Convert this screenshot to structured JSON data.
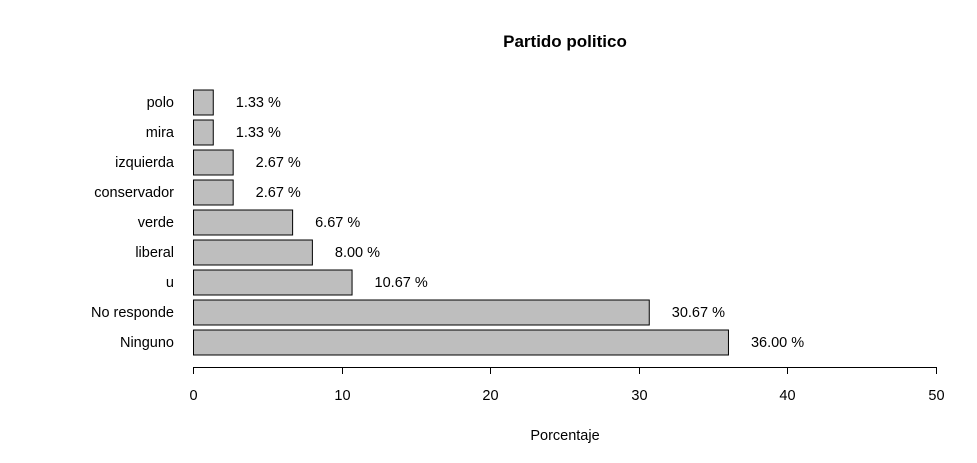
{
  "chart_data": {
    "type": "bar",
    "orientation": "horizontal",
    "title": "Partido politico",
    "xlabel": "Porcentaje",
    "ylabel": "",
    "xlim": [
      0,
      50
    ],
    "x_ticks": [
      0,
      10,
      20,
      30,
      40,
      50
    ],
    "grid": false,
    "bar_color": "#bebebe",
    "categories": [
      "polo",
      "mira",
      "izquierda",
      "conservador",
      "verde",
      "liberal",
      "u",
      "No responde",
      "Ninguno"
    ],
    "values": [
      1.33,
      1.33,
      2.67,
      2.67,
      6.67,
      8.0,
      10.67,
      30.67,
      36.0
    ],
    "data_labels": [
      "1.33 %",
      "1.33 %",
      "2.67 %",
      "2.67 %",
      "6.67 %",
      "8.00 %",
      "10.67 %",
      "30.67 %",
      "36.00 %"
    ]
  }
}
